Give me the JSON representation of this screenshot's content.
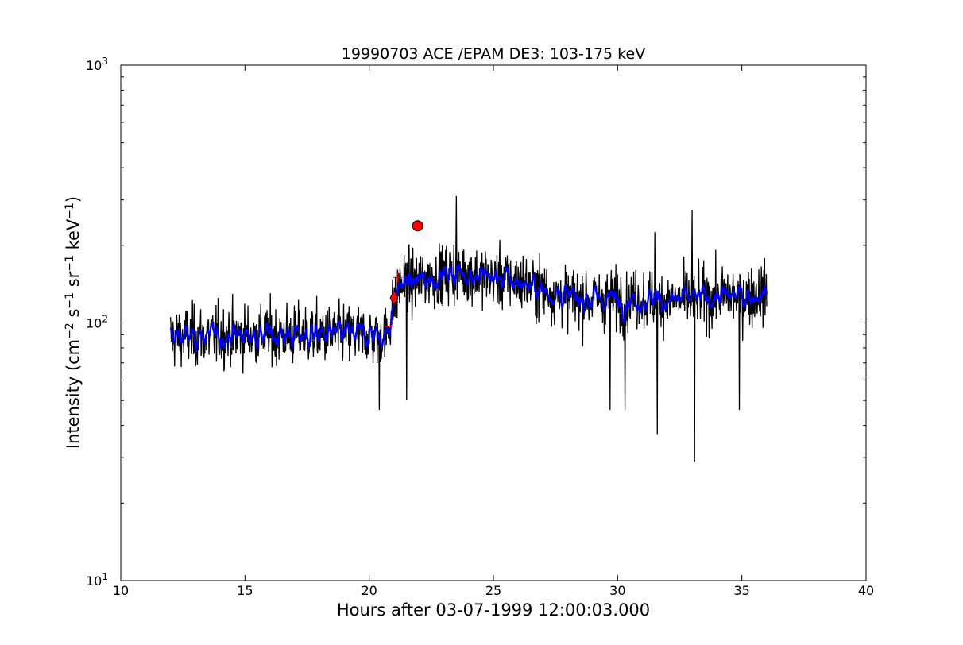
{
  "chart_data": {
    "type": "line",
    "title": "19990703 ACE /EPAM DE3: 103-175 keV",
    "xlabel": "Hours after 03-07-1999 12:00:03.000",
    "ylabel": {
      "prefix": "Intensity (cm",
      "parts": [
        {
          "base": "",
          "sup": "−2"
        },
        {
          "base": "s",
          "sup": "−1"
        },
        {
          "base": "sr",
          "sup": "−1"
        },
        {
          "base": "keV",
          "sup": "−1"
        }
      ],
      "suffix": ")"
    },
    "xlim": [
      10,
      40
    ],
    "ylim": [
      10,
      1000
    ],
    "yscale": "log",
    "x_ticks": [
      {
        "value": 10,
        "label": "10"
      },
      {
        "value": 15,
        "label": "15"
      },
      {
        "value": 20,
        "label": "20"
      },
      {
        "value": 25,
        "label": "25"
      },
      {
        "value": 30,
        "label": "30"
      },
      {
        "value": 35,
        "label": "35"
      },
      {
        "value": 40,
        "label": "40"
      }
    ],
    "y_ticks": [
      {
        "value": 10,
        "base": "10",
        "exp": "1"
      },
      {
        "value": 100,
        "base": "10",
        "exp": "2"
      },
      {
        "value": 1000,
        "base": "10",
        "exp": "3"
      }
    ],
    "grid": false,
    "legend": "none",
    "series": [
      {
        "style": "raw",
        "color": "#000000",
        "x_range": [
          12.0,
          36.0
        ],
        "levels": [
          {
            "x": 12.0,
            "y": 88
          },
          {
            "x": 15.5,
            "y": 90
          },
          {
            "x": 20.7,
            "y": 90
          },
          {
            "x": 21.2,
            "y": 140
          },
          {
            "x": 23.5,
            "y": 158
          },
          {
            "x": 26.0,
            "y": 145
          },
          {
            "x": 28.0,
            "y": 125
          },
          {
            "x": 32.0,
            "y": 122
          },
          {
            "x": 36.0,
            "y": 130
          }
        ],
        "spikes": [
          {
            "x": 23.5,
            "y": 310
          },
          {
            "x": 33.0,
            "y": 275
          },
          {
            "x": 33.1,
            "y": 29
          },
          {
            "x": 31.6,
            "y": 37
          },
          {
            "x": 21.5,
            "y": 50
          },
          {
            "x": 20.4,
            "y": 46
          },
          {
            "x": 29.7,
            "y": 46
          },
          {
            "x": 30.3,
            "y": 46
          },
          {
            "x": 34.9,
            "y": 46
          },
          {
            "x": 31.5,
            "y": 225
          }
        ]
      },
      {
        "style": "smoothed",
        "color": "#0000ff",
        "x_range": [
          12.0,
          36.0
        ]
      }
    ],
    "markers": [
      {
        "shape": "diamond",
        "x": 21.0,
        "y": 125,
        "color": "#ff0000"
      },
      {
        "shape": "circle",
        "x": 21.95,
        "y": 238,
        "color": "#ff0000"
      },
      {
        "shape": "plus",
        "x": 20.8,
        "y": 97,
        "color": "#ff0000"
      },
      {
        "shape": "plus",
        "x": 21.15,
        "y": 150,
        "color": "#ff0000"
      }
    ]
  }
}
